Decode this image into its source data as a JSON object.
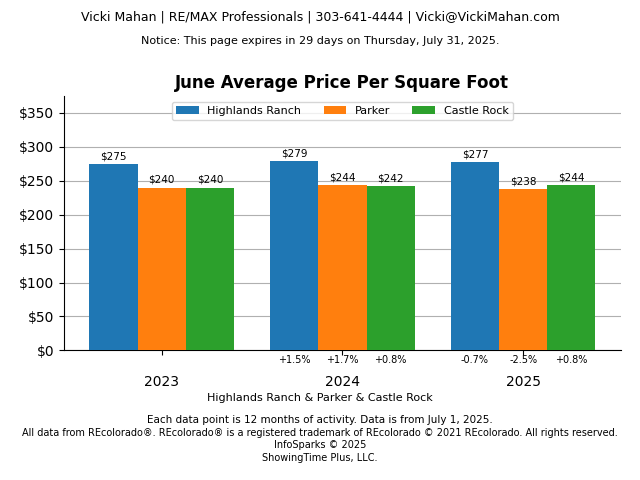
{
  "chart_data": {
    "type": "bar",
    "title": "June Average Price Per Square Foot",
    "annotations": [
      "Vicki Mahan | RE/MAX Professionals | 303-641-4444 | Vicki@VickiMahan.com",
      "Notice: This page expires in 29 days on Thursday, July 31, 2025.",
      "Highlands Ranch & Parker & Castle Rock",
      "Each data point is 12 months of activity. Data is from July 1, 2025.",
      "All data from REcolorado®. REcolorado® is a registered trademark of REcolorado © 2021 REcolorado. All rights reserved. InfoSparks © 2025",
      "ShowingTime Plus, LLC."
    ],
    "categories": [
      "2023",
      "2024",
      "2025"
    ],
    "series": [
      {
        "name": "Highlands Ranch",
        "values": [
          275,
          279,
          277
        ],
        "value_labels": [
          "$275",
          "$279",
          "$277"
        ],
        "change_labels": [
          null,
          "+1.5%",
          "-0.7%"
        ]
      },
      {
        "name": "Parker",
        "values": [
          240,
          244,
          238
        ],
        "value_labels": [
          "$240",
          "$244",
          "$238"
        ],
        "change_labels": [
          null,
          "+1.7%",
          "-2.5%"
        ]
      },
      {
        "name": "Castle Rock",
        "values": [
          240,
          242,
          244
        ],
        "value_labels": [
          "$240",
          "$242",
          "$244"
        ],
        "change_labels": [
          null,
          "+0.8%",
          "+0.8%"
        ]
      }
    ],
    "ylim": [
      0,
      375
    ],
    "yticks": [
      {
        "value": 0,
        "label": "$0"
      },
      {
        "value": 50,
        "label": "$50"
      },
      {
        "value": 100,
        "label": "$100"
      },
      {
        "value": 150,
        "label": "$150"
      },
      {
        "value": 200,
        "label": "$200"
      },
      {
        "value": 250,
        "label": "$250"
      },
      {
        "value": 300,
        "label": "$300"
      },
      {
        "value": 350,
        "label": "$350"
      }
    ],
    "grid": true,
    "legend": "upper center",
    "data_labels": true
  }
}
